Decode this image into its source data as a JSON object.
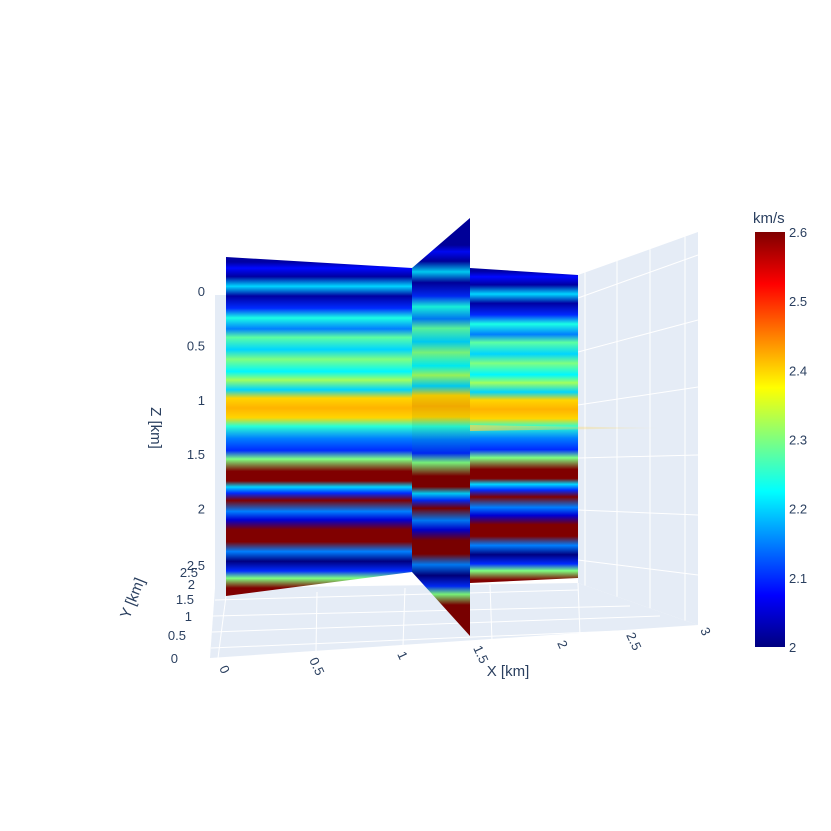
{
  "chart_data": {
    "type": "heatmap",
    "subtype": "3d-slices",
    "xlabel": "X [km]",
    "ylabel": "Y [km]",
    "zlabel": "Z [km]",
    "x_ticks": [
      "0",
      "0.5",
      "1",
      "1.5",
      "2",
      "2.5",
      "3"
    ],
    "y_ticks": [
      "0",
      "0.5",
      "1",
      "1.5",
      "2",
      "2.5"
    ],
    "z_ticks": [
      "0",
      "0.5",
      "1",
      "1.5",
      "2",
      "2.5"
    ],
    "xlim": [
      0,
      3
    ],
    "ylim": [
      0,
      2.5
    ],
    "zlim": [
      2.5,
      0
    ],
    "z_reversed": true,
    "colorscale": "jet",
    "colorbar": {
      "title": "km/s",
      "range": [
        2,
        2.6
      ],
      "ticks": [
        "2",
        "2.1",
        "2.2",
        "2.3",
        "2.4",
        "2.5",
        "2.6"
      ]
    },
    "velocity_profile_by_depth": {
      "z": [
        0.0,
        0.05,
        0.12,
        0.2,
        0.28,
        0.38,
        0.46,
        0.55,
        0.62,
        0.72,
        0.8,
        0.9,
        0.97,
        1.05,
        1.12,
        1.2,
        1.28,
        1.35,
        1.45,
        1.55,
        1.62,
        1.72,
        1.8,
        1.85,
        1.9,
        1.96,
        2.05,
        2.12,
        2.2,
        2.3,
        2.38,
        2.46,
        2.54,
        2.6,
        2.68
      ],
      "v": [
        2.02,
        2.08,
        2.02,
        2.2,
        2.02,
        2.1,
        2.24,
        2.15,
        2.28,
        2.2,
        2.3,
        2.22,
        2.32,
        2.2,
        2.4,
        2.42,
        2.4,
        2.25,
        2.15,
        2.1,
        2.3,
        2.6,
        2.6,
        2.2,
        2.1,
        2.6,
        2.15,
        2.05,
        2.6,
        2.6,
        2.15,
        2.0,
        2.1,
        2.3,
        2.6
      ]
    },
    "grid": true,
    "background": "#e5ecf6"
  }
}
